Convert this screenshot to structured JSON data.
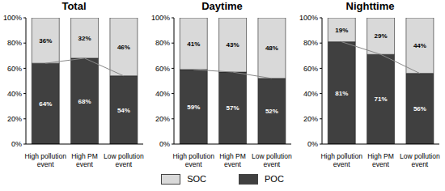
{
  "chart_data": [
    {
      "type": "bar",
      "title": "Total",
      "categories": [
        "High pollution event",
        "High PM event",
        "Low pollution event"
      ],
      "series": [
        {
          "name": "POC",
          "color": "#404040",
          "values": [
            64,
            68,
            54
          ],
          "value_labels": [
            "64%",
            "68%",
            "54%"
          ]
        },
        {
          "name": "SOC",
          "color": "#d9d9d9",
          "values": [
            36,
            32,
            46
          ],
          "value_labels": [
            "36%",
            "32%",
            "46%"
          ]
        }
      ],
      "ylim": [
        0,
        100
      ],
      "yticks": [
        {
          "value": 0,
          "label": "0%"
        },
        {
          "value": 20,
          "label": "20%"
        },
        {
          "value": 40,
          "label": "40%"
        },
        {
          "value": 60,
          "label": "60%"
        },
        {
          "value": 80,
          "label": "80%"
        },
        {
          "value": 100,
          "label": "100%"
        }
      ],
      "stacked": true,
      "data_labels": true,
      "legend": "bottom",
      "grid": false
    },
    {
      "type": "bar",
      "title": "Daytime",
      "categories": [
        "High pollution event",
        "High PM event",
        "Low pollution event"
      ],
      "series": [
        {
          "name": "POC",
          "color": "#404040",
          "values": [
            59,
            57,
            52
          ],
          "value_labels": [
            "59%",
            "57%",
            "52%"
          ]
        },
        {
          "name": "SOC",
          "color": "#d9d9d9",
          "values": [
            41,
            43,
            48
          ],
          "value_labels": [
            "41%",
            "43%",
            "48%"
          ]
        }
      ],
      "ylim": [
        0,
        100
      ],
      "yticks": [
        {
          "value": 0,
          "label": "0%"
        },
        {
          "value": 20,
          "label": "20%"
        },
        {
          "value": 40,
          "label": "40%"
        },
        {
          "value": 60,
          "label": "60%"
        },
        {
          "value": 80,
          "label": "80%"
        },
        {
          "value": 100,
          "label": "100%"
        }
      ],
      "stacked": true,
      "data_labels": true,
      "legend": "bottom",
      "grid": false
    },
    {
      "type": "bar",
      "title": "Nighttime",
      "categories": [
        "High pollution event",
        "High PM event",
        "Low pollution event"
      ],
      "series": [
        {
          "name": "POC",
          "color": "#404040",
          "values": [
            81,
            71,
            56
          ],
          "value_labels": [
            "81%",
            "71%",
            "56%"
          ]
        },
        {
          "name": "SOC",
          "color": "#d9d9d9",
          "values": [
            19,
            29,
            44
          ],
          "value_labels": [
            "19%",
            "29%",
            "44%"
          ]
        }
      ],
      "ylim": [
        0,
        100
      ],
      "yticks": [
        {
          "value": 0,
          "label": "0%"
        },
        {
          "value": 20,
          "label": "20%"
        },
        {
          "value": 40,
          "label": "40%"
        },
        {
          "value": 60,
          "label": "60%"
        },
        {
          "value": 80,
          "label": "80%"
        },
        {
          "value": 100,
          "label": "100%"
        }
      ],
      "stacked": true,
      "data_labels": true,
      "legend": "bottom",
      "grid": false
    }
  ]
}
